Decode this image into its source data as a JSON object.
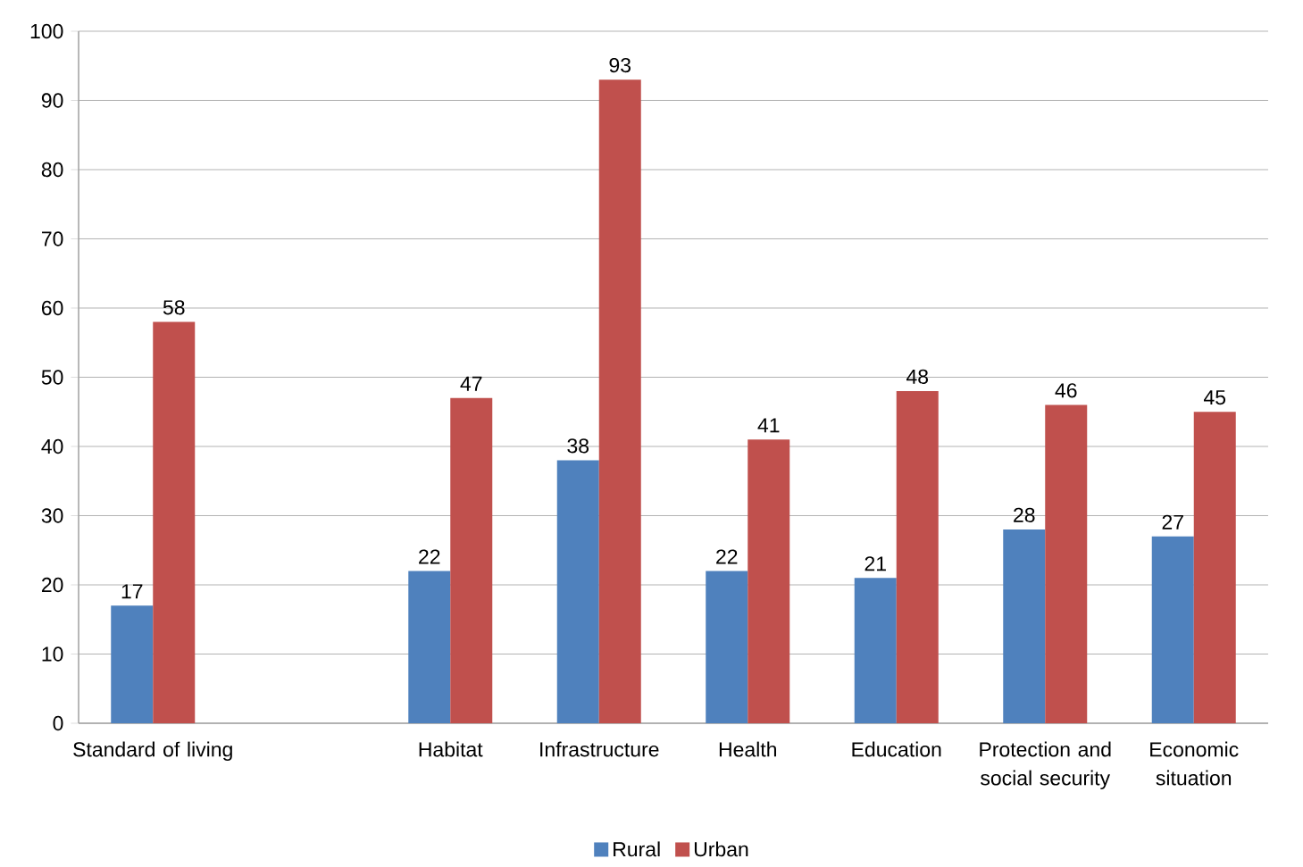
{
  "chart_data": {
    "type": "bar",
    "categories": [
      "Standard of living",
      null,
      "Habitat",
      "Infrastructure",
      "Health",
      "Education",
      "Protection and social security",
      "Economic situation"
    ],
    "series": [
      {
        "name": "Rural",
        "color": "#4f81bd",
        "values": [
          17,
          null,
          22,
          38,
          22,
          21,
          28,
          27
        ]
      },
      {
        "name": "Urban",
        "color": "#c0504d",
        "values": [
          58,
          null,
          47,
          93,
          41,
          48,
          46,
          45
        ]
      }
    ],
    "ylim": [
      0,
      100
    ],
    "yticks": [
      0,
      10,
      20,
      30,
      40,
      50,
      60,
      70,
      80,
      90,
      100
    ],
    "grid": "y",
    "legend": "bottom",
    "data_labels": true
  }
}
